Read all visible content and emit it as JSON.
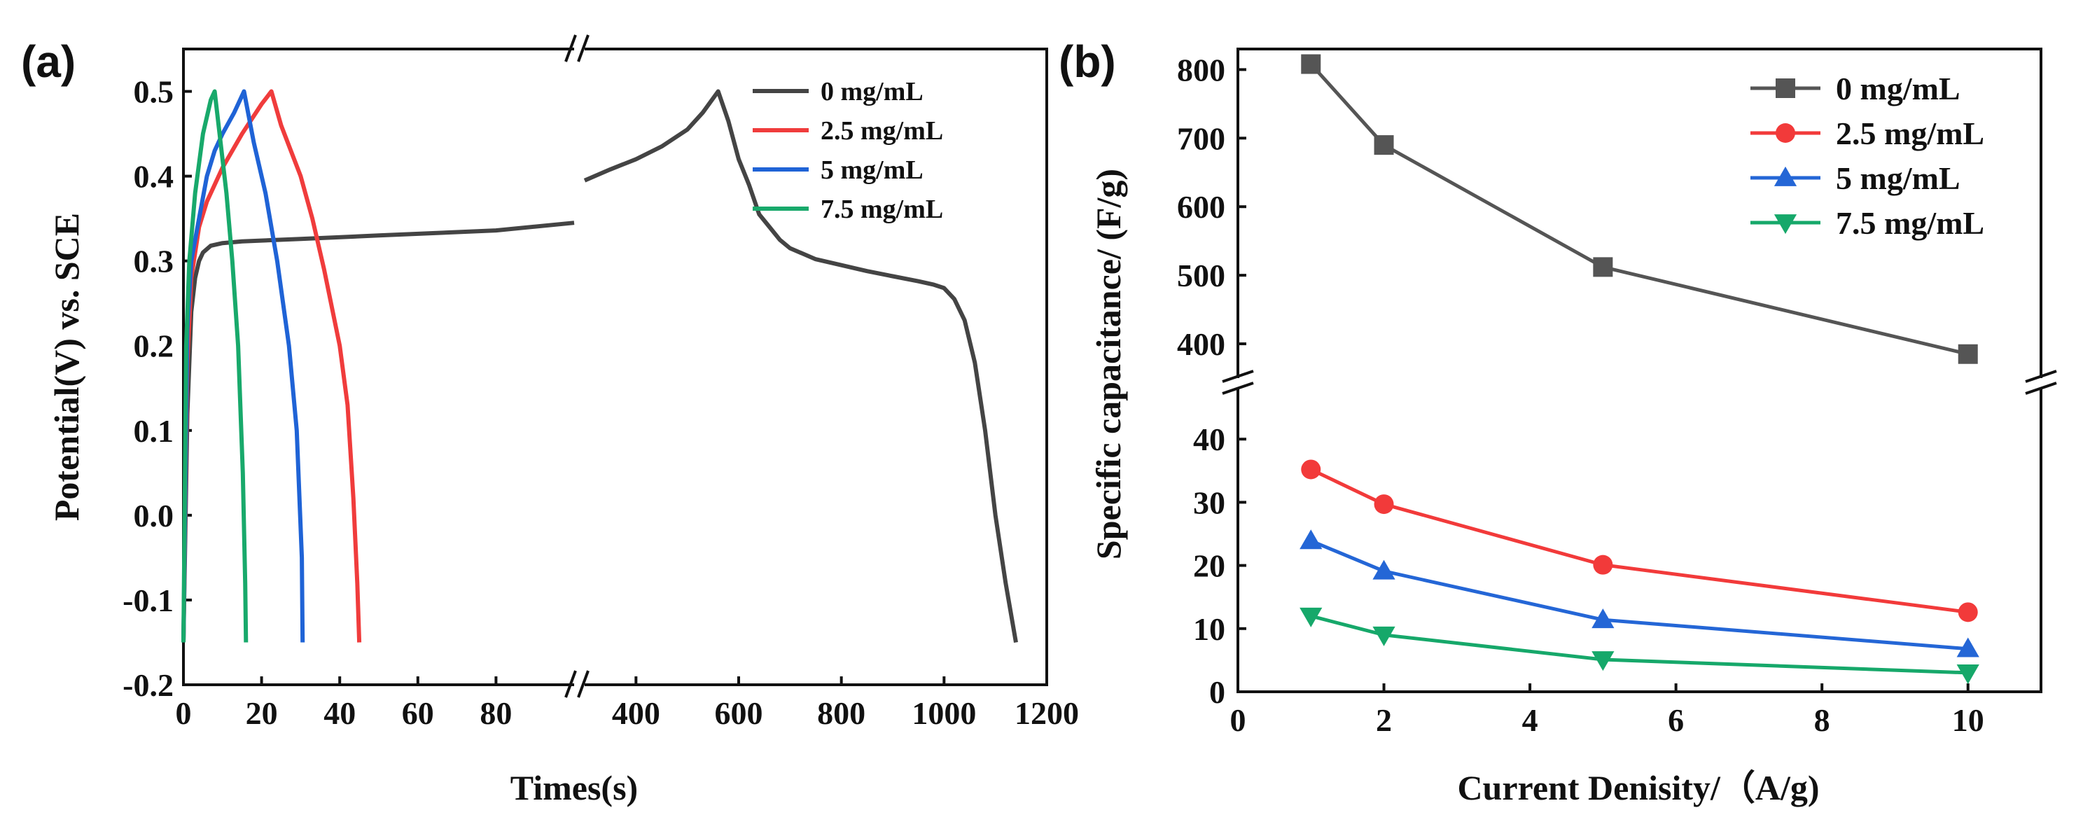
{
  "chart_data": [
    {
      "panel_label": "(a)",
      "type": "line",
      "title": "",
      "xlabel": "Times(s)",
      "ylabel": "Potential(V) vs. SCE",
      "ylim": [
        -0.2,
        0.55
      ],
      "yticks": [
        "-0.2",
        "-0.1",
        "0.0",
        "0.1",
        "0.2",
        "0.3",
        "0.4",
        "0.5"
      ],
      "x_broken_axis": {
        "left_range": [
          0,
          100
        ],
        "left_ticks": [
          "0",
          "20",
          "40",
          "60",
          "80"
        ],
        "right_range": [
          300,
          1200
        ],
        "right_ticks": [
          "400",
          "600",
          "800",
          "1000",
          "1200"
        ]
      },
      "legend_position": "top-right",
      "series": [
        {
          "name": "0 mg/mL",
          "color": "#444444",
          "x": [
            0,
            1,
            2,
            3,
            4,
            5,
            7,
            10,
            15,
            30,
            50,
            80,
            100,
            300,
            350,
            400,
            450,
            500,
            530,
            560,
            580,
            600,
            620,
            640,
            660,
            680,
            700,
            750,
            800,
            850,
            900,
            950,
            980,
            1000,
            1020,
            1040,
            1060,
            1080,
            1100,
            1120,
            1140
          ],
          "y": [
            -0.15,
            0.12,
            0.24,
            0.28,
            0.3,
            0.31,
            0.318,
            0.321,
            0.323,
            0.326,
            0.33,
            0.336,
            0.345,
            0.395,
            0.408,
            0.42,
            0.435,
            0.455,
            0.475,
            0.5,
            0.465,
            0.42,
            0.39,
            0.355,
            0.34,
            0.325,
            0.315,
            0.302,
            0.295,
            0.288,
            0.282,
            0.276,
            0.272,
            0.268,
            0.255,
            0.23,
            0.18,
            0.1,
            0.0,
            -0.08,
            -0.15
          ]
        },
        {
          "name": "2.5 mg/mL",
          "color": "#f03c3c",
          "x": [
            0,
            1,
            2,
            4,
            6,
            10,
            15,
            20,
            22.5,
            25,
            30,
            33,
            36,
            40,
            42,
            43.5,
            44.5,
            45
          ],
          "y": [
            -0.15,
            0.18,
            0.28,
            0.34,
            0.37,
            0.41,
            0.45,
            0.485,
            0.5,
            0.46,
            0.4,
            0.35,
            0.29,
            0.2,
            0.13,
            0.02,
            -0.08,
            -0.15
          ]
        },
        {
          "name": "5 mg/mL",
          "color": "#1f63d6",
          "x": [
            0,
            1,
            2,
            4,
            6,
            8,
            10,
            13,
            15.5,
            18,
            21,
            24,
            27,
            29,
            30.3,
            30.5
          ],
          "y": [
            -0.15,
            0.22,
            0.3,
            0.35,
            0.4,
            0.43,
            0.45,
            0.475,
            0.5,
            0.44,
            0.38,
            0.3,
            0.2,
            0.1,
            -0.05,
            -0.15
          ]
        },
        {
          "name": "7.5 mg/mL",
          "color": "#18a96b",
          "x": [
            0,
            0.7,
            1.5,
            3,
            5,
            7,
            8,
            9.5,
            11,
            12.5,
            14,
            15.2,
            15.8,
            16
          ],
          "y": [
            -0.15,
            0.2,
            0.3,
            0.38,
            0.45,
            0.49,
            0.5,
            0.44,
            0.38,
            0.3,
            0.2,
            0.05,
            -0.08,
            -0.15
          ]
        }
      ]
    },
    {
      "panel_label": "(b)",
      "type": "line",
      "title": "",
      "xlabel": "Current Denisity/（A/g)",
      "ylabel": "Specific capacitance/ (F/g)",
      "xlim": [
        0,
        11
      ],
      "xticks": [
        "0",
        "2",
        "4",
        "6",
        "8",
        "10"
      ],
      "y_broken_axis": {
        "lower_range": [
          0,
          48
        ],
        "lower_ticks": [
          "0",
          "10",
          "20",
          "30",
          "40"
        ],
        "upper_range": [
          350,
          830
        ],
        "upper_ticks": [
          "400",
          "500",
          "600",
          "700",
          "800"
        ]
      },
      "legend_position": "top-right",
      "categories": [
        1,
        2,
        5,
        10
      ],
      "series": [
        {
          "name": "0 mg/mL",
          "color": "#555555",
          "marker": "square",
          "values": [
            808,
            690,
            512,
            385
          ]
        },
        {
          "name": "2.5 mg/mL",
          "color": "#f23a3a",
          "marker": "circle",
          "values": [
            35.2,
            29.7,
            20.1,
            12.6
          ]
        },
        {
          "name": "5 mg/mL",
          "color": "#2466d6",
          "marker": "triangle-up",
          "values": [
            23.9,
            19.1,
            11.4,
            6.8
          ]
        },
        {
          "name": "7.5 mg/mL",
          "color": "#16a86a",
          "marker": "triangle-down",
          "values": [
            12.0,
            9.0,
            5.1,
            3.0
          ]
        }
      ]
    }
  ]
}
